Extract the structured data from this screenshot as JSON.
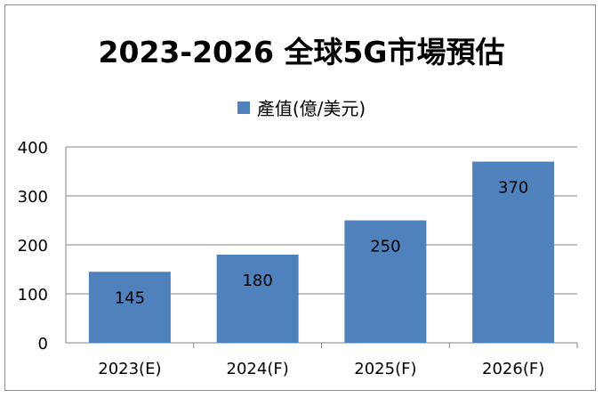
{
  "chart_data": {
    "type": "bar",
    "title": "2023-2026 全球5G市場預估",
    "categories": [
      "2023(E)",
      "2024(F)",
      "2025(F)",
      "2026(F)"
    ],
    "series": [
      {
        "name": "產值(億/美元)",
        "values": [
          145,
          180,
          250,
          370
        ],
        "color": "#4f81bd"
      }
    ],
    "data_labels": [
      "145",
      "180",
      "250",
      "370"
    ],
    "yticks": [
      "0",
      "100",
      "200",
      "300",
      "400"
    ],
    "ylim": [
      0,
      400
    ],
    "xlabel": "",
    "ylabel": "",
    "grid": true,
    "legend_position": "top"
  }
}
